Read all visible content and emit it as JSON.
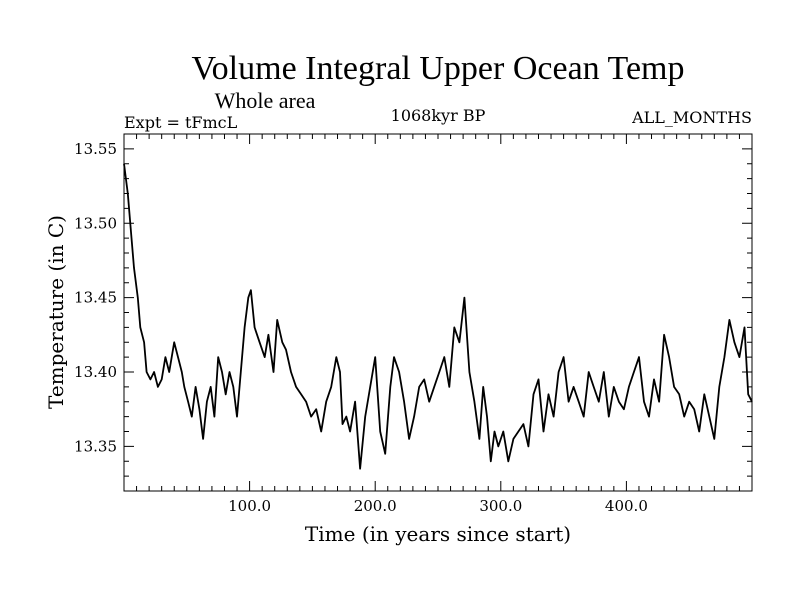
{
  "chart_data": {
    "type": "line",
    "title": "Volume Integral Upper Ocean Temp",
    "subtitle": "Whole area",
    "experiment": "Expt = tFmcL",
    "period": "1068kyr BP",
    "months": "ALL_MONTHS",
    "xlabel": "Time (in years since start)",
    "ylabel": "Temperature (in C)",
    "xlim": [
      0,
      500
    ],
    "ylim": [
      13.32,
      13.56
    ],
    "xticks": [
      100,
      200,
      300,
      400
    ],
    "xtick_labels": [
      "100.0",
      "200.0",
      "300.0",
      "400.0"
    ],
    "yticks": [
      13.35,
      13.4,
      13.45,
      13.5,
      13.55
    ],
    "ytick_labels": [
      "13.35",
      "13.40",
      "13.45",
      "13.50",
      "13.55"
    ],
    "series": [
      {
        "name": "Temperature",
        "color": "#000000",
        "x": [
          0,
          3,
          6,
          8,
          11,
          13,
          16,
          18,
          21,
          24,
          27,
          30,
          33,
          36,
          40,
          43,
          46,
          48,
          51,
          54,
          57,
          60,
          63,
          66,
          69,
          72,
          75,
          78,
          81,
          84,
          87,
          90,
          93,
          96,
          99,
          101,
          104,
          108,
          112,
          115,
          119,
          122,
          126,
          129,
          133,
          137,
          141,
          145,
          149,
          153,
          157,
          161,
          165,
          169,
          172,
          174,
          177,
          180,
          184,
          188,
          192,
          196,
          200,
          204,
          208,
          212,
          215,
          219,
          223,
          227,
          231,
          235,
          239,
          243,
          247,
          251,
          255,
          259,
          263,
          267,
          271,
          275,
          279,
          283,
          286,
          289,
          292,
          295,
          298,
          302,
          306,
          310,
          314,
          318,
          322,
          326,
          330,
          334,
          338,
          342,
          346,
          350,
          354,
          358,
          362,
          366,
          370,
          374,
          378,
          382,
          386,
          390,
          394,
          398,
          402,
          406,
          410,
          414,
          418,
          422,
          426,
          430,
          434,
          438,
          442,
          446,
          450,
          454,
          458,
          462,
          466,
          470,
          474,
          478,
          482,
          486,
          490,
          494,
          497,
          500
        ],
        "y": [
          13.54,
          13.52,
          13.49,
          13.47,
          13.45,
          13.43,
          13.42,
          13.4,
          13.395,
          13.4,
          13.39,
          13.395,
          13.41,
          13.4,
          13.42,
          13.41,
          13.4,
          13.39,
          13.38,
          13.37,
          13.39,
          13.375,
          13.355,
          13.38,
          13.39,
          13.37,
          13.41,
          13.4,
          13.385,
          13.4,
          13.39,
          13.37,
          13.4,
          13.43,
          13.45,
          13.455,
          13.43,
          13.42,
          13.41,
          13.425,
          13.4,
          13.435,
          13.42,
          13.415,
          13.4,
          13.39,
          13.385,
          13.38,
          13.37,
          13.375,
          13.36,
          13.38,
          13.39,
          13.41,
          13.4,
          13.365,
          13.37,
          13.36,
          13.38,
          13.335,
          13.37,
          13.39,
          13.41,
          13.36,
          13.345,
          13.39,
          13.41,
          13.4,
          13.38,
          13.355,
          13.37,
          13.39,
          13.395,
          13.38,
          13.39,
          13.4,
          13.41,
          13.39,
          13.43,
          13.42,
          13.45,
          13.4,
          13.38,
          13.355,
          13.39,
          13.37,
          13.34,
          13.36,
          13.35,
          13.36,
          13.34,
          13.355,
          13.36,
          13.365,
          13.35,
          13.385,
          13.395,
          13.36,
          13.385,
          13.37,
          13.4,
          13.41,
          13.38,
          13.39,
          13.38,
          13.37,
          13.4,
          13.39,
          13.38,
          13.4,
          13.37,
          13.39,
          13.38,
          13.375,
          13.39,
          13.4,
          13.41,
          13.38,
          13.37,
          13.395,
          13.38,
          13.425,
          13.41,
          13.39,
          13.385,
          13.37,
          13.38,
          13.375,
          13.36,
          13.385,
          13.37,
          13.355,
          13.39,
          13.41,
          13.435,
          13.42,
          13.41,
          13.43,
          13.385,
          13.38
        ]
      }
    ]
  }
}
